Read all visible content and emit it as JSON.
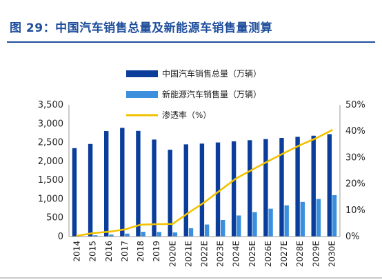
{
  "figure": {
    "title": "图 29：中国汽车销售总量及新能源车销售量测算",
    "colors": {
      "title": "#1f4e9c",
      "total": "#0a3e9a",
      "nev": "#3c8fdc",
      "share": "#f2c200",
      "axis": "#9a9a9a"
    }
  },
  "chart_data": {
    "type": "bar",
    "title": "",
    "xlabel": "",
    "ylabel": "",
    "categories": [
      "2014",
      "2015",
      "2016",
      "2017",
      "2018",
      "2019",
      "2020E",
      "2021E",
      "2022E",
      "2023E",
      "2024E",
      "2025E",
      "2026E",
      "2027E",
      "2028E",
      "2029E",
      "2030E"
    ],
    "y_left": {
      "ylim": [
        0,
        3500
      ],
      "ticks": [
        "0",
        "500",
        "1,000",
        "1,500",
        "2,000",
        "2,500",
        "3,000",
        "3,500"
      ]
    },
    "y_right": {
      "ylim": [
        0,
        50
      ],
      "ticks": [
        "0%",
        "10%",
        "20%",
        "30%",
        "40%",
        "50%"
      ]
    },
    "series": [
      {
        "name": "中国汽车销售总量（万辆）",
        "type": "bar",
        "axis": "left",
        "color": "#0a3e9a",
        "values": [
          2349,
          2460,
          2803,
          2888,
          2808,
          2577,
          2307,
          2449,
          2470,
          2500,
          2530,
          2560,
          2590,
          2620,
          2650,
          2680,
          2720
        ]
      },
      {
        "name": "新能源汽车销售量（万辆）",
        "type": "bar",
        "axis": "left",
        "color": "#3c8fdc",
        "values": [
          7,
          33,
          51,
          78,
          126,
          121,
          110,
          220,
          320,
          440,
          560,
          650,
          740,
          830,
          920,
          1000,
          1100
        ]
      },
      {
        "name": "渗透率（%）",
        "type": "line",
        "axis": "right",
        "color": "#f2c200",
        "values": [
          0.3,
          1.3,
          1.8,
          2.7,
          4.5,
          4.7,
          4.8,
          9.0,
          13.0,
          17.6,
          22.1,
          25.4,
          28.6,
          31.7,
          34.7,
          37.3,
          40.4
        ]
      }
    ],
    "grid": false,
    "legend": "top-center"
  }
}
